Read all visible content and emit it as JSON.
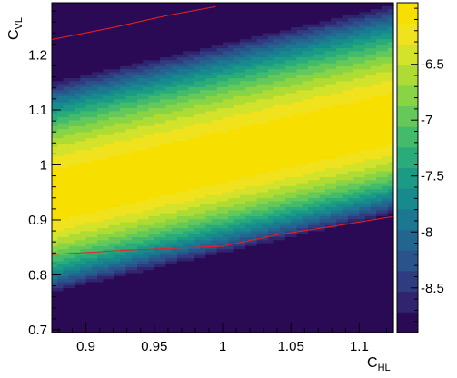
{
  "chart_data": {
    "type": "heatmap",
    "title": "",
    "xlabel": "C",
    "xlabel_subscript": "HL",
    "ylabel": "C",
    "ylabel_subscript": "VL",
    "xlim": [
      0.875,
      1.125
    ],
    "ylim": [
      0.695,
      1.295
    ],
    "zlim": [
      -8.9,
      -5.95
    ],
    "x_ticks": [
      0.9,
      0.95,
      1,
      1.05,
      1.1
    ],
    "x_tick_labels": [
      "0.9",
      "0.95",
      "1",
      "1.05",
      "1.1"
    ],
    "y_ticks": [
      0.7,
      0.8,
      0.9,
      1,
      1.1,
      1.2
    ],
    "y_tick_labels": [
      "0.7",
      "0.8",
      "0.9",
      "1",
      "1.1",
      "1.2"
    ],
    "z_ticks": [
      -6.5,
      -7,
      -7.5,
      -8,
      -8.5
    ],
    "z_tick_labels": [
      "-6.5",
      "-7",
      "-7.5",
      "-8",
      "-8.5"
    ],
    "colormap": [
      "#2a0a55",
      "#30246e",
      "#2f3d80",
      "#29538a",
      "#226690",
      "#1c7890",
      "#178a8d",
      "#1b9b86",
      "#2aac7a",
      "#43bb6b",
      "#64c958",
      "#88d444",
      "#aedc34",
      "#d3e22a",
      "#f1e21e",
      "#f7e000"
    ],
    "peak_y": 1.01,
    "peak_slope": 0.56,
    "contour_level": -6.2,
    "contour_lines": [
      {
        "name": "",
        "points": [
          [
            0.875,
            1.228
          ],
          [
            0.92,
            1.25
          ],
          [
            0.96,
            1.272
          ],
          [
            0.995,
            1.288
          ]
        ]
      },
      {
        "name": "",
        "points": [
          [
            0.875,
            0.837
          ],
          [
            0.93,
            0.845
          ],
          [
            0.97,
            0.849
          ],
          [
            1.0,
            0.852
          ],
          [
            1.04,
            0.873
          ],
          [
            1.08,
            0.888
          ],
          [
            1.125,
            0.906
          ]
        ]
      }
    ],
    "colors": {
      "contour": "#ee2020",
      "frame": "#000000",
      "background": "#ffffff"
    }
  }
}
